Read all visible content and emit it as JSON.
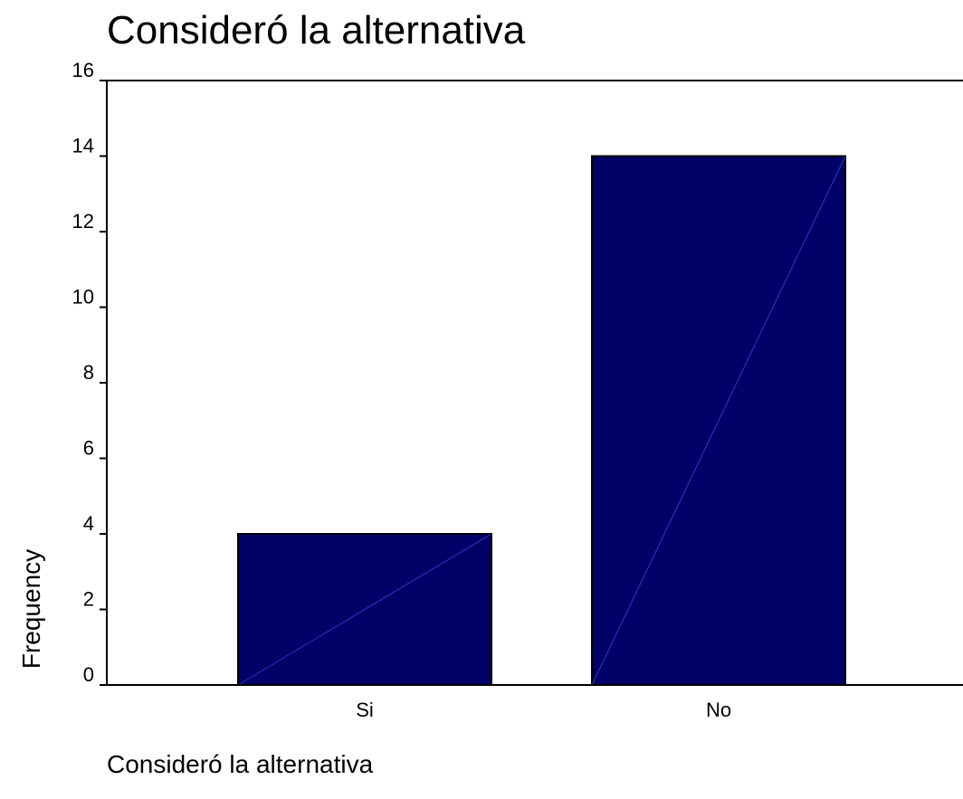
{
  "chart_data": {
    "type": "bar",
    "title": "Consideró la alternativa",
    "xlabel": "Consideró la alternativa",
    "ylabel": "Frequency",
    "categories": [
      "Si",
      "No"
    ],
    "values": [
      4,
      14
    ],
    "ylim": [
      0,
      16
    ],
    "yticks": [
      0,
      2,
      4,
      6,
      8,
      10,
      12,
      14,
      16
    ],
    "grid": false,
    "bar_color": "#000066",
    "bar_edge_color": "#000000",
    "bar_diagonal_color": "#3333cc"
  }
}
